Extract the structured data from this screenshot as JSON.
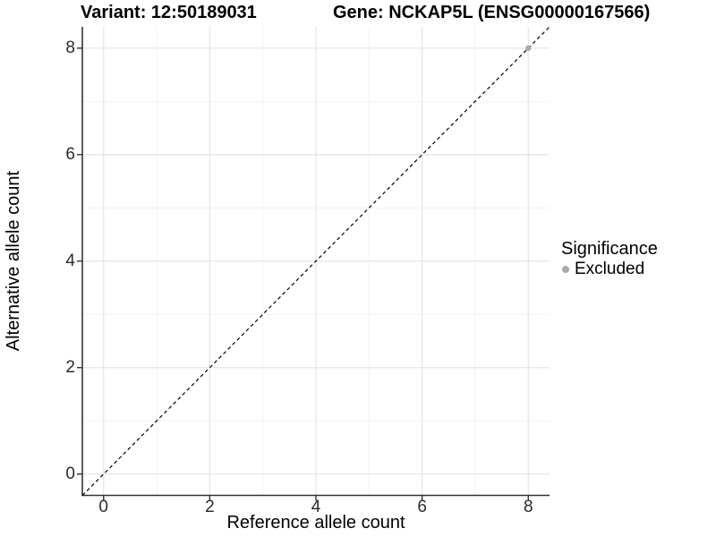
{
  "chart_data": {
    "type": "scatter",
    "title_left": "Variant: 12:50189031",
    "title_right": "Gene: NCKAP5L (ENSG00000167566)",
    "xlabel": "Reference allele count",
    "ylabel": "Alternative allele count",
    "xlim": [
      -0.4,
      8.4
    ],
    "ylim": [
      -0.4,
      8.4
    ],
    "x_major_ticks": [
      0,
      2,
      4,
      6,
      8
    ],
    "y_major_ticks": [
      0,
      2,
      4,
      6,
      8
    ],
    "x_minor_gridlines": [
      1,
      3,
      5,
      7
    ],
    "y_minor_gridlines": [
      1,
      3,
      5,
      7
    ],
    "grid": true,
    "points": [
      {
        "x": 8,
        "y": 8,
        "series": "Excluded"
      }
    ],
    "identity_line": {
      "slope": 1,
      "intercept": 0,
      "style": "dashed"
    },
    "legend": {
      "position": "right",
      "title": "Significance",
      "items": [
        {
          "label": "Excluded",
          "color": "#aaaaaa"
        }
      ]
    },
    "colors": {
      "background": "#ffffff",
      "grid_major": "#e4e4e4",
      "grid_minor": "#f1f1f1",
      "axis_line": "#333333",
      "identity_line": "#000000",
      "point": "#aaaaaa"
    }
  }
}
